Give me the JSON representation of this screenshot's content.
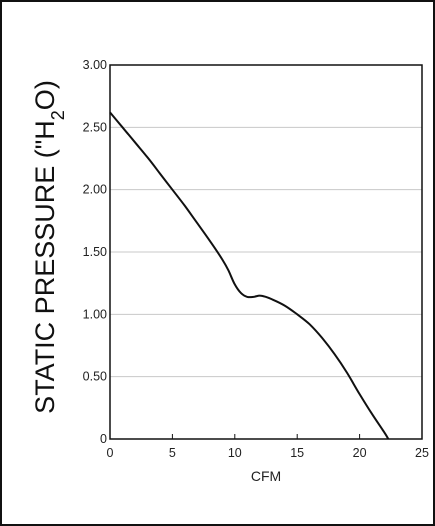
{
  "chart_data": {
    "type": "line",
    "title": "",
    "xlabel": "CFM",
    "ylabel": "STATIC PRESSURE (\"H",
    "ylabel_sub": "2",
    "ylabel_end": "O)",
    "xlim": [
      0,
      25
    ],
    "ylim": [
      0,
      3.0
    ],
    "x_ticks": [
      "0",
      "5",
      "10",
      "15",
      "20",
      "25"
    ],
    "y_ticks": [
      "0",
      "0.50",
      "1.00",
      "1.50",
      "2.00",
      "2.50",
      "3.00"
    ],
    "grid": true,
    "series": [
      {
        "x": [
          0,
          1,
          2,
          3,
          4,
          5,
          6,
          7,
          8,
          9,
          9.5,
          10,
          10.5,
          11,
          11.5,
          12,
          12.5,
          13,
          14,
          15,
          16,
          17,
          18,
          19,
          20,
          21,
          22,
          22.3
        ],
        "y": [
          2.62,
          2.5,
          2.38,
          2.26,
          2.13,
          2.0,
          1.87,
          1.73,
          1.59,
          1.44,
          1.35,
          1.24,
          1.17,
          1.14,
          1.14,
          1.15,
          1.14,
          1.12,
          1.07,
          1.0,
          0.92,
          0.81,
          0.68,
          0.53,
          0.36,
          0.2,
          0.05,
          0.0
        ]
      }
    ],
    "colors": {
      "line": "#111111",
      "grid": "#c8c8c8",
      "axis": "#111111"
    }
  }
}
